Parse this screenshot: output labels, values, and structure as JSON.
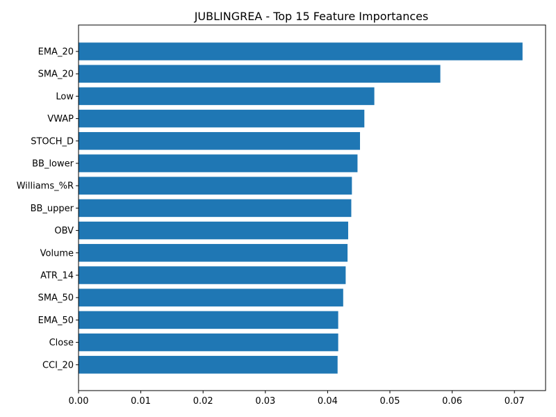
{
  "chart_data": {
    "type": "bar",
    "orientation": "horizontal",
    "title": "JUBLINGREA - Top 15 Feature Importances",
    "xlabel": "",
    "ylabel": "",
    "categories": [
      "EMA_20",
      "SMA_20",
      "Low",
      "VWAP",
      "STOCH_D",
      "BB_lower",
      "Williams_%R",
      "BB_upper",
      "OBV",
      "Volume",
      "ATR_14",
      "SMA_50",
      "EMA_50",
      "Close",
      "CCI_20"
    ],
    "values": [
      0.0713,
      0.0581,
      0.0475,
      0.0459,
      0.0452,
      0.0448,
      0.0439,
      0.0438,
      0.0433,
      0.0432,
      0.0429,
      0.0425,
      0.0417,
      0.0417,
      0.0416
    ],
    "xlim": [
      0,
      0.075
    ],
    "xticks": [
      "0.00",
      "0.01",
      "0.02",
      "0.03",
      "0.04",
      "0.05",
      "0.06",
      "0.07"
    ],
    "grid": false,
    "bar_color": "#1f77b4"
  }
}
